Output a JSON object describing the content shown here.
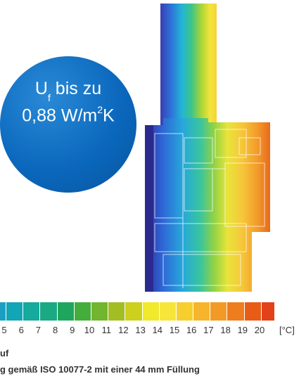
{
  "badge": {
    "main": "U",
    "sub": "f",
    "text1": " bis zu",
    "text2": "0,88 W/m",
    "sup": "2",
    "suffix": "K"
  },
  "scale": {
    "ticks": [
      "5",
      "6",
      "7",
      "8",
      "9",
      "10",
      "11",
      "12",
      "13",
      "14",
      "15",
      "16",
      "17",
      "18",
      "19",
      "20"
    ],
    "unit": "[°C]",
    "colors": [
      "#12a5b6",
      "#16a99d",
      "#1aa983",
      "#1fa65e",
      "#44ad3c",
      "#72b52f",
      "#a3bd24",
      "#cdd01e",
      "#f1e92b",
      "#f8e53a",
      "#f6cf2e",
      "#f6b52c",
      "#f39a26",
      "#ee7d1d",
      "#e85c17",
      "#e2411a"
    ]
  },
  "caption": {
    "line1": "uf",
    "line2": "g gemäß ISO 10077-2 mit einer 44 mm Füllung"
  }
}
